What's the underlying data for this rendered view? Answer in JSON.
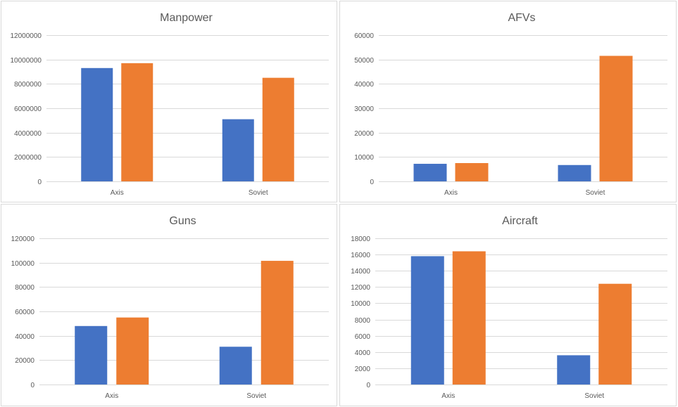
{
  "colors": {
    "series_a": "#4472c4",
    "series_b": "#ed7d31",
    "grid": "#d9d9d9",
    "text": "#595959"
  },
  "chart_data": [
    {
      "type": "bar",
      "title": "Manpower",
      "categories": [
        "Axis",
        "Soviet"
      ],
      "series": [
        {
          "values": [
            9300000,
            5100000
          ]
        },
        {
          "values": [
            9700000,
            8500000
          ]
        }
      ],
      "ylim": [
        0,
        12000000
      ],
      "yticks": [
        "0",
        "2000000",
        "4000000",
        "6000000",
        "8000000",
        "10000000",
        "12000000"
      ],
      "grid": true,
      "legend": "none"
    },
    {
      "type": "bar",
      "title": "AFVs",
      "categories": [
        "Axis",
        "Soviet"
      ],
      "series": [
        {
          "values": [
            7200,
            6700
          ]
        },
        {
          "values": [
            7500,
            51500
          ]
        }
      ],
      "ylim": [
        0,
        60000
      ],
      "yticks": [
        "0",
        "10000",
        "20000",
        "30000",
        "40000",
        "50000",
        "60000"
      ],
      "grid": true,
      "legend": "none"
    },
    {
      "type": "bar",
      "title": "Guns",
      "categories": [
        "Axis",
        "Soviet"
      ],
      "series": [
        {
          "values": [
            48000,
            31000
          ]
        },
        {
          "values": [
            55000,
            101500
          ]
        }
      ],
      "ylim": [
        0,
        120000
      ],
      "yticks": [
        "0",
        "20000",
        "40000",
        "60000",
        "80000",
        "100000",
        "120000"
      ],
      "grid": true,
      "legend": "none"
    },
    {
      "type": "bar",
      "title": "Aircraft",
      "categories": [
        "Axis",
        "Soviet"
      ],
      "series": [
        {
          "values": [
            15800,
            3600
          ]
        },
        {
          "values": [
            16400,
            12400
          ]
        }
      ],
      "ylim": [
        0,
        18000
      ],
      "yticks": [
        "0",
        "2000",
        "4000",
        "6000",
        "8000",
        "10000",
        "12000",
        "14000",
        "16000",
        "18000"
      ],
      "grid": true,
      "legend": "none"
    }
  ]
}
